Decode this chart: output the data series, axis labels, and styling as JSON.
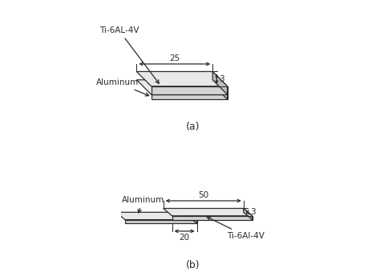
{
  "bg_color": "#ffffff",
  "line_color": "#2a2a2a",
  "face_top": "#e8e8e8",
  "face_front": "#d4d4d4",
  "face_side": "#c0c0c0",
  "label_a": "(a)",
  "label_b": "(b)",
  "dim_25": "25",
  "dim_3_a": "3",
  "dim_50": "50",
  "dim_3_b": "3",
  "dim_20": "20",
  "text_ti_a": "Ti-6AL-4V",
  "text_al_a": "Aluminum",
  "text_al_b": "Aluminum",
  "text_ti_b": "Ti-6Al-4V",
  "font_size": 7.5,
  "label_font_size": 9
}
